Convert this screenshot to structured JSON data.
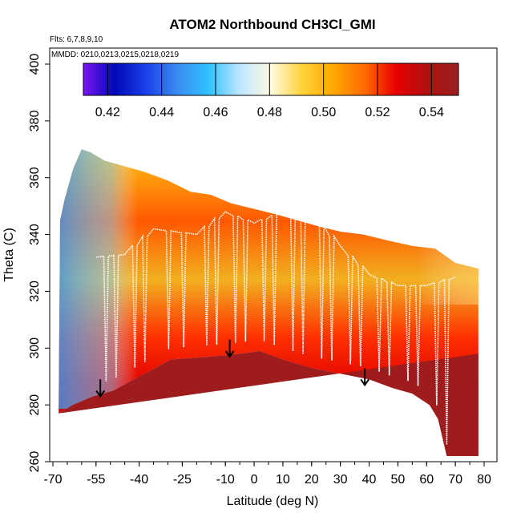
{
  "chart_data": {
    "type": "heatmap",
    "title": "ATOM2 Northbound CH3Cl_GMI",
    "subtitle_flights": "Flts: 6,7,8,9,10",
    "subtitle_dates": "MMDD: 0210,0213,0215,0218,0219",
    "xlabel": "Latitude (deg N)",
    "ylabel": "Theta (C)",
    "xlim": [
      -70,
      80
    ],
    "ylim": [
      260,
      400
    ],
    "x_ticks": [
      -70,
      -55,
      -40,
      -25,
      -10,
      0,
      10,
      20,
      30,
      40,
      50,
      60,
      70,
      80
    ],
    "x_tick_labels": [
      "-70",
      "-55",
      "-40",
      "-25",
      "-10",
      "0",
      "10",
      "20",
      "30",
      "40",
      "50",
      "60",
      "70",
      "80"
    ],
    "y_ticks": [
      260,
      280,
      300,
      320,
      340,
      360,
      380,
      400
    ],
    "y_tick_labels": [
      "260",
      "280",
      "300",
      "320",
      "340",
      "360",
      "380",
      "400"
    ],
    "colorbar": {
      "min": 0.411,
      "max": 0.55,
      "ticks": [
        0.42,
        0.44,
        0.46,
        0.48,
        0.5,
        0.52,
        0.54
      ],
      "tick_labels": [
        "0.42",
        "0.44",
        "0.46",
        "0.48",
        "0.50",
        "0.52",
        "0.54"
      ],
      "colors": [
        "#7a16f0",
        "#0008b8",
        "#1a3fe8",
        "#3a8cf0",
        "#2fc2ff",
        "#bde6ff",
        "#fffbe0",
        "#ffd23a",
        "#ffa800",
        "#ff6a00",
        "#e80000",
        "#b01010",
        "#9a2020"
      ]
    },
    "surface_boundary": {
      "lat": [
        -68,
        -63,
        -56,
        -49,
        -40,
        -29,
        -15,
        -5,
        2,
        10,
        20,
        30,
        40,
        48,
        55,
        61,
        64,
        67,
        70,
        73,
        78
      ],
      "theta": [
        277,
        280,
        283,
        285,
        290,
        296,
        297,
        298,
        299,
        296,
        293,
        291,
        289,
        286,
        284,
        280,
        275,
        262,
        262,
        262,
        262
      ]
    },
    "top_boundary": {
      "lat": [
        -67.5,
        -66,
        -63,
        -60,
        -57,
        -52,
        -45,
        -38,
        -30,
        -22,
        -15,
        -8,
        0,
        8,
        15,
        22,
        30,
        38,
        46,
        55,
        63,
        70,
        78
      ],
      "theta": [
        345,
        352,
        363,
        370,
        369,
        366,
        364,
        362,
        359,
        355,
        354,
        351,
        349,
        347,
        345,
        343,
        341,
        340,
        338,
        336,
        335,
        330,
        328
      ]
    },
    "flight_track_samples": [
      {
        "lat": -55,
        "theta": 332
      },
      {
        "lat": -45,
        "theta": 333
      },
      {
        "lat": -35,
        "theta": 342
      },
      {
        "lat": -20,
        "theta": 340
      },
      {
        "lat": -10,
        "theta": 348
      },
      {
        "lat": 0,
        "theta": 344
      },
      {
        "lat": 10,
        "theta": 348
      },
      {
        "lat": 20,
        "theta": 347
      },
      {
        "lat": 30,
        "theta": 336
      },
      {
        "lat": 40,
        "theta": 326
      },
      {
        "lat": 50,
        "theta": 322
      },
      {
        "lat": 60,
        "theta": 322
      },
      {
        "lat": 70,
        "theta": 325
      }
    ],
    "arrows": [
      {
        "lat": -53.5,
        "theta_from": 289,
        "theta_to": 283
      },
      {
        "lat": -8.5,
        "theta_from": 303,
        "theta_to": 297
      },
      {
        "lat": 38.5,
        "theta_from": 293,
        "theta_to": 287
      }
    ]
  }
}
